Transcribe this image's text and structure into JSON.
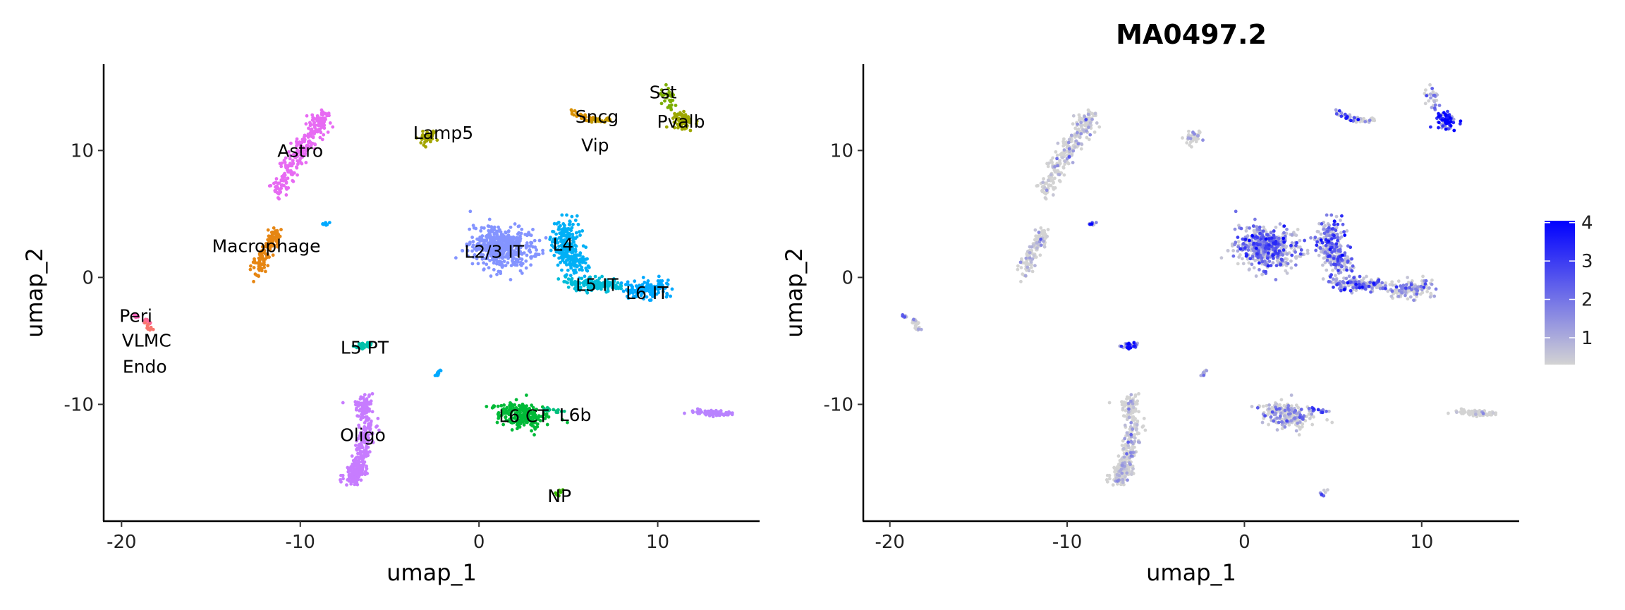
{
  "chart_data": [
    {
      "type": "scatter",
      "title": "",
      "xlabel": "umap_1",
      "ylabel": "umap_2",
      "xlim": [
        -21,
        15.7
      ],
      "ylim": [
        -19.2,
        16.8
      ],
      "xticks": [
        -20,
        -10,
        0,
        10
      ],
      "yticks": [
        -10,
        0,
        10
      ],
      "grid": false,
      "legend": "none",
      "clusters": [
        {
          "name": "Astro",
          "color": "#E76BF3",
          "path": [
            [
              -11.3,
              6.8
            ],
            [
              -10.2,
              9.5
            ],
            [
              -9.2,
              11.5
            ],
            [
              -8.6,
              12.9
            ]
          ],
          "sd": [
            0.25,
            0.35
          ],
          "n": 260,
          "expr": 0.1,
          "label": [
            -10,
            10
          ]
        },
        {
          "name": "Lamp5",
          "color": "#A3A500",
          "path": [
            [
              -3.2,
              10.8
            ],
            [
              -2.6,
              11.3
            ]
          ],
          "sd": [
            0.2,
            0.25
          ],
          "n": 40,
          "expr": 0.1,
          "label": [
            -2.0,
            11.4
          ]
        },
        {
          "name": "Sncg",
          "color": "#D89000",
          "path": [
            [
              5.3,
              12.9
            ],
            [
              6.3,
              12.5
            ]
          ],
          "sd": [
            0.2,
            0.15
          ],
          "n": 25,
          "expr": 2.5,
          "label": [
            6.6,
            12.7
          ]
        },
        {
          "name": "Vip",
          "color": "#C49A00",
          "path": [
            [
              6.3,
              12.4
            ],
            [
              7.2,
              12.3
            ]
          ],
          "sd": [
            0.2,
            0.12
          ],
          "n": 20,
          "expr": 1.0,
          "label": [
            6.5,
            12.0
          ]
        },
        {
          "name": "Sst",
          "color": "#7CAE00",
          "path": [
            [
              10.5,
              14.8
            ],
            [
              10.8,
              13.2
            ]
          ],
          "sd": [
            0.2,
            0.3
          ],
          "n": 30,
          "expr": 1.2,
          "label": [
            10.3,
            14.6
          ]
        },
        {
          "name": "Pvalb",
          "color": "#9EA700",
          "path": [
            [
              11.2,
              12.5
            ],
            [
              11.6,
              12.1
            ]
          ],
          "sd": [
            0.25,
            0.3
          ],
          "n": 70,
          "expr": 3.8,
          "label": [
            11.3,
            12.3
          ]
        },
        {
          "name": "Macrophage",
          "color": "#E68613",
          "path": [
            [
              -12.4,
              0.4
            ],
            [
              -11.8,
              2.5
            ],
            [
              -11.3,
              3.6
            ]
          ],
          "sd": [
            0.2,
            0.3
          ],
          "n": 140,
          "expr": 0.1,
          "label": [
            -11.9,
            2.5
          ]
        },
        {
          "name": "",
          "color": "#00A9FF",
          "path": [
            [
              -8.8,
              4.1
            ],
            [
              -8.5,
              4.3
            ]
          ],
          "sd": [
            0.1,
            0.05
          ],
          "n": 10,
          "expr": 2.0,
          "label": null
        },
        {
          "name": "L2/3 IT",
          "color": "#8494FF",
          "path": [
            [
              0.6,
              2.6
            ],
            [
              1.8,
              2.0
            ]
          ],
          "sd": [
            0.8,
            0.8
          ],
          "n": 500,
          "expr": 1.8,
          "label": [
            0.85,
            2.05
          ]
        },
        {
          "name": "L4",
          "color": "#00B0F6",
          "path": [
            [
              4.9,
              4.2
            ],
            [
              4.8,
              2.2
            ],
            [
              5.6,
              0.6
            ]
          ],
          "sd": [
            0.35,
            0.5
          ],
          "n": 260,
          "expr": 2.0,
          "label": [
            4.7,
            2.6
          ]
        },
        {
          "name": "L5 IT",
          "color": "#00BCD8",
          "path": [
            [
              5.0,
              -0.4
            ],
            [
              7.5,
              -0.6
            ]
          ],
          "sd": [
            0.4,
            0.25
          ],
          "n": 160,
          "expr": 1.8,
          "label": [
            6.6,
            -0.55
          ]
        },
        {
          "name": "L6 IT",
          "color": "#00A9FF",
          "path": [
            [
              8.5,
              -0.9
            ],
            [
              10.3,
              -0.9
            ]
          ],
          "sd": [
            0.35,
            0.35
          ],
          "n": 120,
          "expr": 0.8,
          "label": [
            9.4,
            -1.2
          ]
        },
        {
          "name": "Peri",
          "color": "#FF62BC",
          "path": [
            [
              -19.3,
              -2.9
            ],
            [
              -19.0,
              -3.2
            ]
          ],
          "sd": [
            0.08,
            0.08
          ],
          "n": 8,
          "expr": 2.0,
          "label": [
            -19.2,
            -3.0
          ]
        },
        {
          "name": "VLMC",
          "color": "#FF6A98",
          "path": [
            [
              -18.6,
              -3.3
            ],
            [
              -18.5,
              -3.6
            ]
          ],
          "sd": [
            0.08,
            0.12
          ],
          "n": 10,
          "expr": 0.5,
          "label": [
            -18.6,
            -3.4
          ]
        },
        {
          "name": "Endo",
          "color": "#F8766D",
          "path": [
            [
              -18.5,
              -3.7
            ],
            [
              -18.4,
              -4.2
            ]
          ],
          "sd": [
            0.1,
            0.12
          ],
          "n": 12,
          "expr": 0.1,
          "label": [
            -18.7,
            -3.9
          ]
        },
        {
          "name": "L5 PT",
          "color": "#00C1AA",
          "path": [
            [
              -6.9,
              -5.5
            ],
            [
              -6.2,
              -5.3
            ]
          ],
          "sd": [
            0.15,
            0.12
          ],
          "n": 30,
          "expr": 3.3,
          "label": [
            -6.4,
            -5.5
          ]
        },
        {
          "name": "",
          "color": "#00A9FF",
          "path": [
            [
              -2.4,
              -7.7
            ],
            [
              -2.1,
              -7.3
            ]
          ],
          "sd": [
            0.06,
            0.08
          ],
          "n": 10,
          "expr": 2.0,
          "label": null
        },
        {
          "name": "Oligo",
          "color": "#C77CFF",
          "path": [
            [
              -6.5,
              -9.3
            ],
            [
              -6.2,
              -12.0
            ],
            [
              -6.7,
              -14.8
            ],
            [
              -7.2,
              -16.0
            ]
          ],
          "sd": [
            0.25,
            0.3
          ],
          "n": 330,
          "expr": 0.05,
          "label": [
            -6.5,
            -12.4
          ]
        },
        {
          "name": "L6 CT",
          "color": "#00BA38",
          "path": [
            [
              1.5,
              -10.5
            ],
            [
              3.2,
              -11.2
            ]
          ],
          "sd": [
            0.55,
            0.45
          ],
          "n": 220,
          "expr": 0.7,
          "label": [
            2.5,
            -10.9
          ]
        },
        {
          "name": "L6b",
          "color": "#00BF7D",
          "path": [
            [
              3.8,
              -10.4
            ],
            [
              4.6,
              -10.6
            ]
          ],
          "sd": [
            0.2,
            0.1
          ],
          "n": 15,
          "expr": 2.5,
          "label": [
            4.2,
            -10.8
          ]
        },
        {
          "name": "NP",
          "color": "#39B600",
          "path": [
            [
              4.3,
              -17.3
            ],
            [
              4.6,
              -16.7
            ]
          ],
          "sd": [
            0.07,
            0.1
          ],
          "n": 10,
          "expr": 1.5,
          "label": [
            4.5,
            -17.2
          ]
        },
        {
          "name": "",
          "color": "#B983FF",
          "path": [
            [
              12.2,
              -10.6
            ],
            [
              13.8,
              -10.7
            ]
          ],
          "sd": [
            0.3,
            0.12
          ],
          "n": 70,
          "expr": 0.05,
          "label": null
        }
      ]
    },
    {
      "type": "scatter",
      "title": "MA0497.2",
      "xlabel": "umap_1",
      "ylabel": "umap_2",
      "xlim": [
        -21.5,
        15.5
      ],
      "ylim": [
        -19.2,
        16.8
      ],
      "xticks": [
        -20,
        -10,
        0,
        10
      ],
      "yticks": [
        -10,
        0,
        10
      ],
      "legend": "right",
      "colorbar": {
        "min": 0.3,
        "max": 4.05,
        "ticks": [
          1,
          2,
          3,
          4
        ],
        "low_color": "#D3D3D3",
        "high_color": "#0000FF"
      }
    }
  ]
}
